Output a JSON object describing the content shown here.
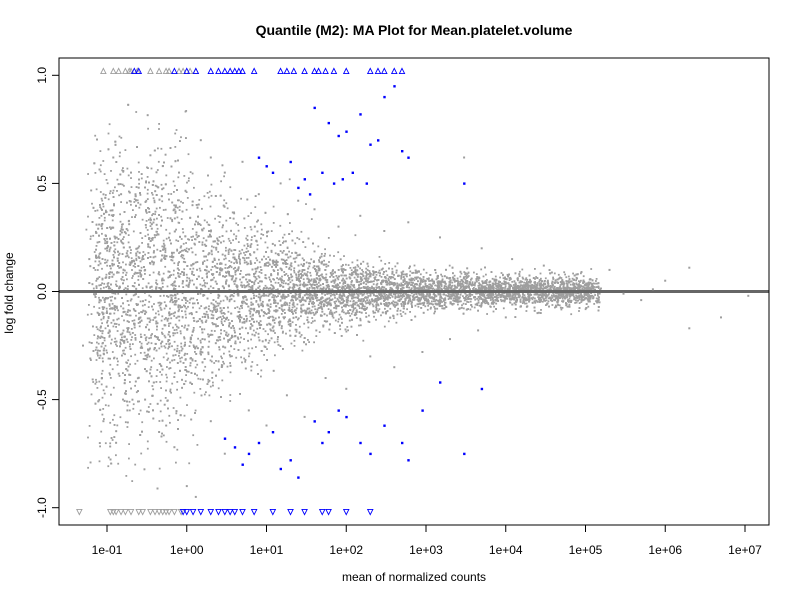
{
  "chart_data": {
    "type": "scatter",
    "title": "Quantile (M2): MA Plot for Mean.platelet.volume",
    "xlabel": "mean of normalized counts",
    "ylabel": "log fold change",
    "x_scale": "log10",
    "xlim": [
      0.025,
      20000000
    ],
    "ylim": [
      -1.08,
      1.08
    ],
    "x_ticks": [
      {
        "value": 0.1,
        "label": "1e-01"
      },
      {
        "value": 1,
        "label": "1e+00"
      },
      {
        "value": 10,
        "label": "1e+01"
      },
      {
        "value": 100,
        "label": "1e+02"
      },
      {
        "value": 1000,
        "label": "1e+03"
      },
      {
        "value": 10000,
        "label": "1e+04"
      },
      {
        "value": 100000,
        "label": "1e+05"
      },
      {
        "value": 1000000,
        "label": "1e+06"
      },
      {
        "value": 10000000,
        "label": "1e+07"
      }
    ],
    "y_ticks": [
      {
        "value": 1.0,
        "label": "1.0"
      },
      {
        "value": 0.5,
        "label": "0.5"
      },
      {
        "value": 0.0,
        "label": "0.0"
      },
      {
        "value": -0.5,
        "label": "-0.5"
      },
      {
        "value": -1.0,
        "label": "-1.0"
      }
    ],
    "reference_line": {
      "y": 0,
      "color": "#666666"
    },
    "colors": {
      "not_significant": "#9e9e9e",
      "significant": "#0000ff",
      "frame": "#000000"
    },
    "grid": false,
    "legend": "none",
    "series": [
      {
        "significant": false,
        "points": [
          [
            0.12,
            0.62
          ],
          [
            0.15,
            0.45
          ],
          [
            0.2,
            0.55
          ],
          [
            0.25,
            0.48
          ],
          [
            0.35,
            0.63
          ],
          [
            0.5,
            0.58
          ],
          [
            0.8,
            0.55
          ],
          [
            1.5,
            0.7
          ],
          [
            2,
            0.62
          ],
          [
            3,
            0.55
          ],
          [
            5,
            0.6
          ],
          [
            8,
            0.45
          ],
          [
            15,
            0.5
          ],
          [
            25,
            0.42
          ],
          [
            40,
            0.38
          ],
          [
            80,
            0.3
          ],
          [
            150,
            0.35
          ],
          [
            300,
            0.28
          ],
          [
            600,
            0.32
          ],
          [
            1500,
            0.25
          ],
          [
            3000,
            0.62
          ],
          [
            5000,
            0.2
          ],
          [
            12000,
            0.15
          ],
          [
            30000,
            0.12
          ],
          [
            80000,
            0.08
          ],
          [
            200000,
            0.1
          ],
          [
            1000000,
            0.05
          ],
          [
            2000000,
            0.11
          ],
          [
            11000000,
            -0.02
          ],
          [
            0.06,
            0.15
          ],
          [
            0.08,
            -0.05
          ],
          [
            0.1,
            0.2
          ],
          [
            0.3,
            0.1
          ],
          [
            0.6,
            -0.1
          ],
          [
            1,
            0.05
          ],
          [
            2,
            -0.2
          ],
          [
            4,
            0.15
          ],
          [
            7,
            -0.08
          ],
          [
            12,
            0.22
          ],
          [
            20,
            -0.15
          ],
          [
            35,
            0.05
          ],
          [
            60,
            -0.05
          ],
          [
            120,
            0.08
          ],
          [
            250,
            -0.06
          ],
          [
            500,
            0.03
          ],
          [
            1000,
            -0.04
          ],
          [
            2500,
            0.05
          ],
          [
            6000,
            -0.03
          ],
          [
            15000,
            0.02
          ],
          [
            40000,
            -0.02
          ],
          [
            100000,
            0.03
          ],
          [
            300000,
            -0.01
          ],
          [
            700000,
            0.01
          ],
          [
            2000000,
            -0.17
          ],
          [
            5000000,
            -0.12
          ],
          [
            0.05,
            -0.25
          ],
          [
            0.09,
            -0.6
          ],
          [
            0.13,
            -0.7
          ],
          [
            0.18,
            -0.55
          ],
          [
            0.3,
            -0.5
          ],
          [
            0.45,
            -0.65
          ],
          [
            0.7,
            -0.72
          ],
          [
            1,
            -0.9
          ],
          [
            1.3,
            -0.95
          ],
          [
            2,
            -0.6
          ],
          [
            3,
            -0.75
          ],
          [
            6,
            -0.55
          ],
          [
            10,
            -0.62
          ],
          [
            18,
            -0.48
          ],
          [
            30,
            -0.58
          ],
          [
            55,
            -0.4
          ],
          [
            100,
            -0.45
          ],
          [
            200,
            -0.3
          ],
          [
            400,
            -0.35
          ],
          [
            900,
            -0.28
          ],
          [
            2000,
            -0.22
          ],
          [
            4500,
            -0.18
          ],
          [
            10000,
            -0.12
          ],
          [
            25000,
            -0.1
          ],
          [
            60000,
            -0.07
          ],
          [
            150000,
            -0.05
          ],
          [
            500000,
            -0.04
          ]
        ]
      },
      {
        "significant": true,
        "points": [
          [
            40,
            0.85
          ],
          [
            60,
            0.78
          ],
          [
            80,
            0.72
          ],
          [
            100,
            0.74
          ],
          [
            150,
            0.82
          ],
          [
            200,
            0.68
          ],
          [
            250,
            0.7
          ],
          [
            300,
            0.9
          ],
          [
            400,
            0.95
          ],
          [
            500,
            0.65
          ],
          [
            600,
            0.62
          ],
          [
            3000,
            0.5
          ],
          [
            8,
            0.62
          ],
          [
            10,
            0.58
          ],
          [
            12,
            0.55
          ],
          [
            20,
            0.6
          ],
          [
            30,
            0.52
          ],
          [
            50,
            0.55
          ],
          [
            70,
            0.5
          ],
          [
            90,
            0.52
          ],
          [
            120,
            0.55
          ],
          [
            180,
            0.5
          ],
          [
            25,
            0.48
          ],
          [
            35,
            0.45
          ],
          [
            3,
            -0.68
          ],
          [
            4,
            -0.72
          ],
          [
            5,
            -0.8
          ],
          [
            6,
            -0.75
          ],
          [
            8,
            -0.7
          ],
          [
            12,
            -0.65
          ],
          [
            15,
            -0.82
          ],
          [
            20,
            -0.78
          ],
          [
            25,
            -0.86
          ],
          [
            40,
            -0.6
          ],
          [
            50,
            -0.7
          ],
          [
            60,
            -0.65
          ],
          [
            80,
            -0.55
          ],
          [
            100,
            -0.58
          ],
          [
            150,
            -0.7
          ],
          [
            200,
            -0.75
          ],
          [
            300,
            -0.62
          ],
          [
            500,
            -0.7
          ],
          [
            600,
            -0.78
          ],
          [
            900,
            -0.55
          ],
          [
            1500,
            -0.42
          ],
          [
            3000,
            -0.75
          ],
          [
            5000,
            -0.45
          ]
        ]
      }
    ],
    "clipped_points": {
      "note_values": "points beyond the y range drawn as triangles at the edge",
      "upper_grey_x": [
        0.09,
        0.12,
        0.14,
        0.17,
        0.19,
        0.2,
        0.24,
        0.35,
        0.45,
        0.55,
        0.6,
        0.8,
        0.9,
        1.1,
        1.3
      ],
      "upper_blue_x": [
        0.22,
        0.25,
        0.7,
        1,
        1.3,
        2,
        2.5,
        3,
        3.5,
        4,
        4.5,
        5,
        7,
        15,
        18,
        22,
        30,
        40,
        45,
        55,
        70,
        100,
        200,
        250,
        300,
        400,
        500
      ],
      "lower_grey_x": [
        0.045,
        0.11,
        0.12,
        0.13,
        0.15,
        0.17,
        0.2,
        0.25,
        0.28,
        0.35,
        0.4,
        0.45,
        0.5,
        0.55,
        0.6,
        0.7,
        0.85
      ],
      "lower_blue_x": [
        0.9,
        1,
        1.2,
        1.5,
        2,
        2.5,
        3,
        3.5,
        4,
        5,
        7,
        12,
        20,
        30,
        50,
        60,
        100,
        200
      ]
    }
  }
}
